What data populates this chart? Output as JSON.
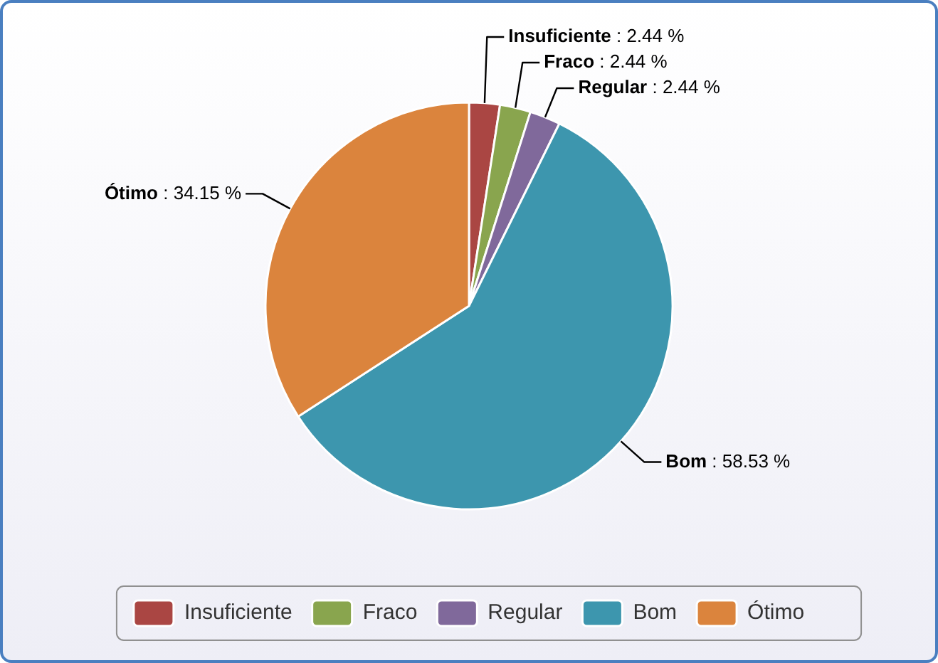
{
  "chart_data": {
    "type": "pie",
    "categories": [
      "Insuficiente",
      "Fraco",
      "Regular",
      "Bom",
      "Ótimo"
    ],
    "values": [
      2.44,
      2.44,
      2.44,
      58.53,
      34.15
    ],
    "colors": [
      "#aa4643",
      "#89a54e",
      "#80699b",
      "#3d96ae",
      "#db843d"
    ],
    "value_labels": [
      ": 2.44 %",
      ": 2.44 %",
      ": 2.44 %",
      ": 58.53 %",
      ": 34.15 %"
    ],
    "legend": "bottom"
  }
}
